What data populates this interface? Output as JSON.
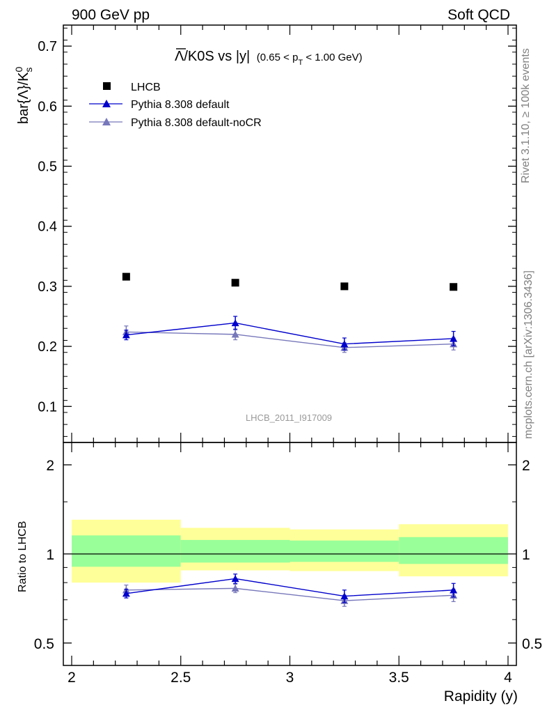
{
  "header": {
    "left": "900 GeV pp",
    "right": "Soft QCD"
  },
  "side": {
    "rivet": "Rivet 3.1.10, ≥ 100k events",
    "mcplots": "mcplots.cern.ch [arXiv:1306.3436]"
  },
  "plot_title": {
    "main": "Λ/K0S vs |y|",
    "cut": "(0.65 < p",
    "cut_sub": "T",
    "cut_end": " < 1.00 GeV)"
  },
  "analysis_id": "LHCB_2011_I917009",
  "ylabel_main": "bar{Λ}/K",
  "ylabel_sup": "0",
  "ylabel_sub": "s",
  "ylabel_ratio": "Ratio to LHCB",
  "xlabel": "Rapidity (y)",
  "colors": {
    "data": "#000000",
    "default": "#0000cc",
    "nocr": "#7777bb",
    "band_inner": "#99ff99",
    "band_outer": "#ffff99"
  },
  "chart_data": [
    {
      "type": "line",
      "panel": "main",
      "xlabel": "Rapidity (y)",
      "ylabel": "bar{Λ}/K0s",
      "xlim": [
        2.0,
        4.0
      ],
      "ylim": [
        0.04,
        0.735
      ],
      "xticks": [
        2,
        2.5,
        3,
        3.5,
        4
      ],
      "xtick_labels": [
        "2",
        "2.5",
        "3",
        "3.5",
        "4"
      ],
      "yticks": [
        0.1,
        0.2,
        0.3,
        0.4,
        0.5,
        0.6,
        0.7
      ],
      "ytick_labels": [
        "0.1",
        "0.2",
        "0.3",
        "0.4",
        "0.5",
        "0.6",
        "0.7"
      ],
      "legend_position": "top-left",
      "series": [
        {
          "name": "LHCB",
          "marker": "square",
          "x": [
            2.25,
            2.75,
            3.25,
            3.75
          ],
          "y": [
            0.316,
            0.306,
            0.3,
            0.299
          ],
          "yerr": [
            0.002,
            0.002,
            0.002,
            0.002
          ]
        },
        {
          "name": "Pythia 8.308 default",
          "marker": "triangle",
          "x": [
            2.25,
            2.75,
            3.25,
            3.75
          ],
          "y": [
            0.219,
            0.239,
            0.204,
            0.213
          ],
          "yerr": [
            0.008,
            0.011,
            0.01,
            0.012
          ]
        },
        {
          "name": "Pythia 8.308 default-noCR",
          "marker": "triangle",
          "x": [
            2.25,
            2.75,
            3.25,
            3.75
          ],
          "y": [
            0.224,
            0.22,
            0.198,
            0.204
          ],
          "yerr": [
            0.01,
            0.009,
            0.008,
            0.01
          ]
        }
      ]
    },
    {
      "type": "line",
      "panel": "ratio",
      "ylabel": "Ratio to LHCB",
      "xlim": [
        2.0,
        4.0
      ],
      "ylim": [
        0.42,
        2.38
      ],
      "yscale": "log",
      "yticks": [
        0.5,
        1,
        2
      ],
      "ytick_labels": [
        "0.5",
        "1",
        "2"
      ],
      "band_x_edges": [
        2.0,
        2.5,
        3.0,
        3.5,
        4.0
      ],
      "band_inner": [
        [
          0.905,
          1.155
        ],
        [
          0.935,
          1.115
        ],
        [
          0.94,
          1.11
        ],
        [
          0.925,
          1.14
        ]
      ],
      "band_outer": [
        [
          0.8,
          1.305
        ],
        [
          0.88,
          1.225
        ],
        [
          0.875,
          1.21
        ],
        [
          0.84,
          1.26
        ]
      ],
      "series": [
        {
          "name": "Pythia 8.308 default",
          "x": [
            2.25,
            2.75,
            3.25,
            3.75
          ],
          "y": [
            0.735,
            0.825,
            0.72,
            0.755
          ],
          "yerr": [
            0.025,
            0.03,
            0.035,
            0.04
          ]
        },
        {
          "name": "Pythia 8.308 default-noCR",
          "x": [
            2.25,
            2.75,
            3.25,
            3.75
          ],
          "y": [
            0.755,
            0.765,
            0.695,
            0.725
          ],
          "yerr": [
            0.03,
            0.025,
            0.03,
            0.035
          ]
        }
      ]
    }
  ]
}
